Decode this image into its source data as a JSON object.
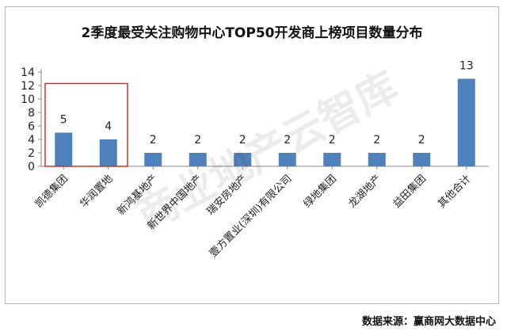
{
  "chart_data": {
    "type": "bar",
    "title": "2季度最受关注购物中心TOP50开发商上榜项目数量分布",
    "categories": [
      "凯德集团",
      "华润置地",
      "新鸿基地产",
      "新世界中国地产",
      "瑞安房地产",
      "壹方置业(深圳)有限公司",
      "绿地集团",
      "龙湖地产",
      "益田集团",
      "其他合计"
    ],
    "values": [
      5,
      4,
      2,
      2,
      2,
      2,
      2,
      2,
      2,
      13
    ],
    "yticks": [
      0,
      2,
      4,
      6,
      8,
      10,
      12,
      14
    ],
    "ylim": [
      0,
      14
    ],
    "grid": false,
    "legend": "none",
    "highlight": {
      "categories": [
        "凯德集团",
        "华润置地"
      ],
      "color": "#c0392b"
    },
    "colors": {
      "bar": "#4f81bd",
      "axis": "#888888"
    }
  },
  "watermark": "商业地产云智库",
  "source": "数据来源：赢商网大数据中心"
}
